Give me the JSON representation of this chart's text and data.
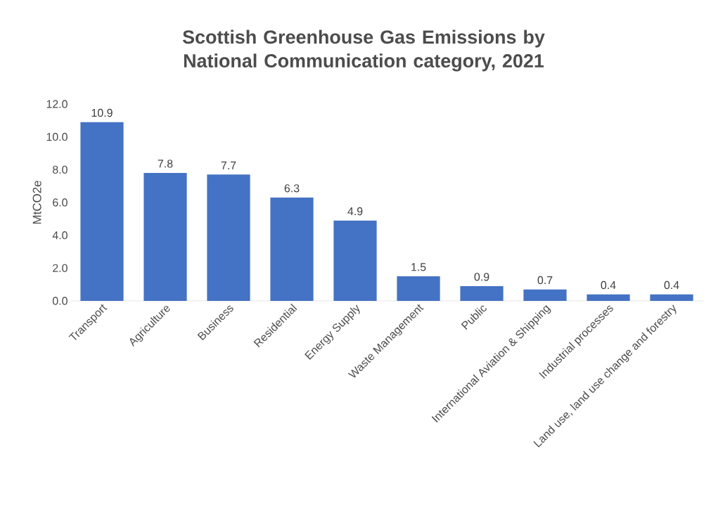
{
  "chart_data": {
    "type": "bar",
    "title": "Scottish Greenhouse Gas Emissions by National Communication category, 2021",
    "ylabel": "MtCO2e",
    "categories": [
      "Transport",
      "Agriculture",
      "Business",
      "Residential",
      "Energy Supply",
      "Waste Management",
      "Public",
      "International Aviation & Shipping",
      "Industrial processes",
      "Land use, land use change and forestry"
    ],
    "values": [
      10.9,
      7.8,
      7.7,
      6.3,
      4.9,
      1.5,
      0.9,
      0.7,
      0.4,
      0.4
    ],
    "color": "#4472c4",
    "data_labels": true,
    "ylim": [
      0,
      12
    ],
    "yticks": [
      {
        "value": 0,
        "label": "0.0"
      },
      {
        "value": 2,
        "label": "2.0"
      },
      {
        "value": 4,
        "label": "4.0"
      },
      {
        "value": 6,
        "label": "6.0"
      },
      {
        "value": 8,
        "label": "8.0"
      },
      {
        "value": 10,
        "label": "10.0"
      },
      {
        "value": 12,
        "label": "12.0"
      }
    ]
  }
}
